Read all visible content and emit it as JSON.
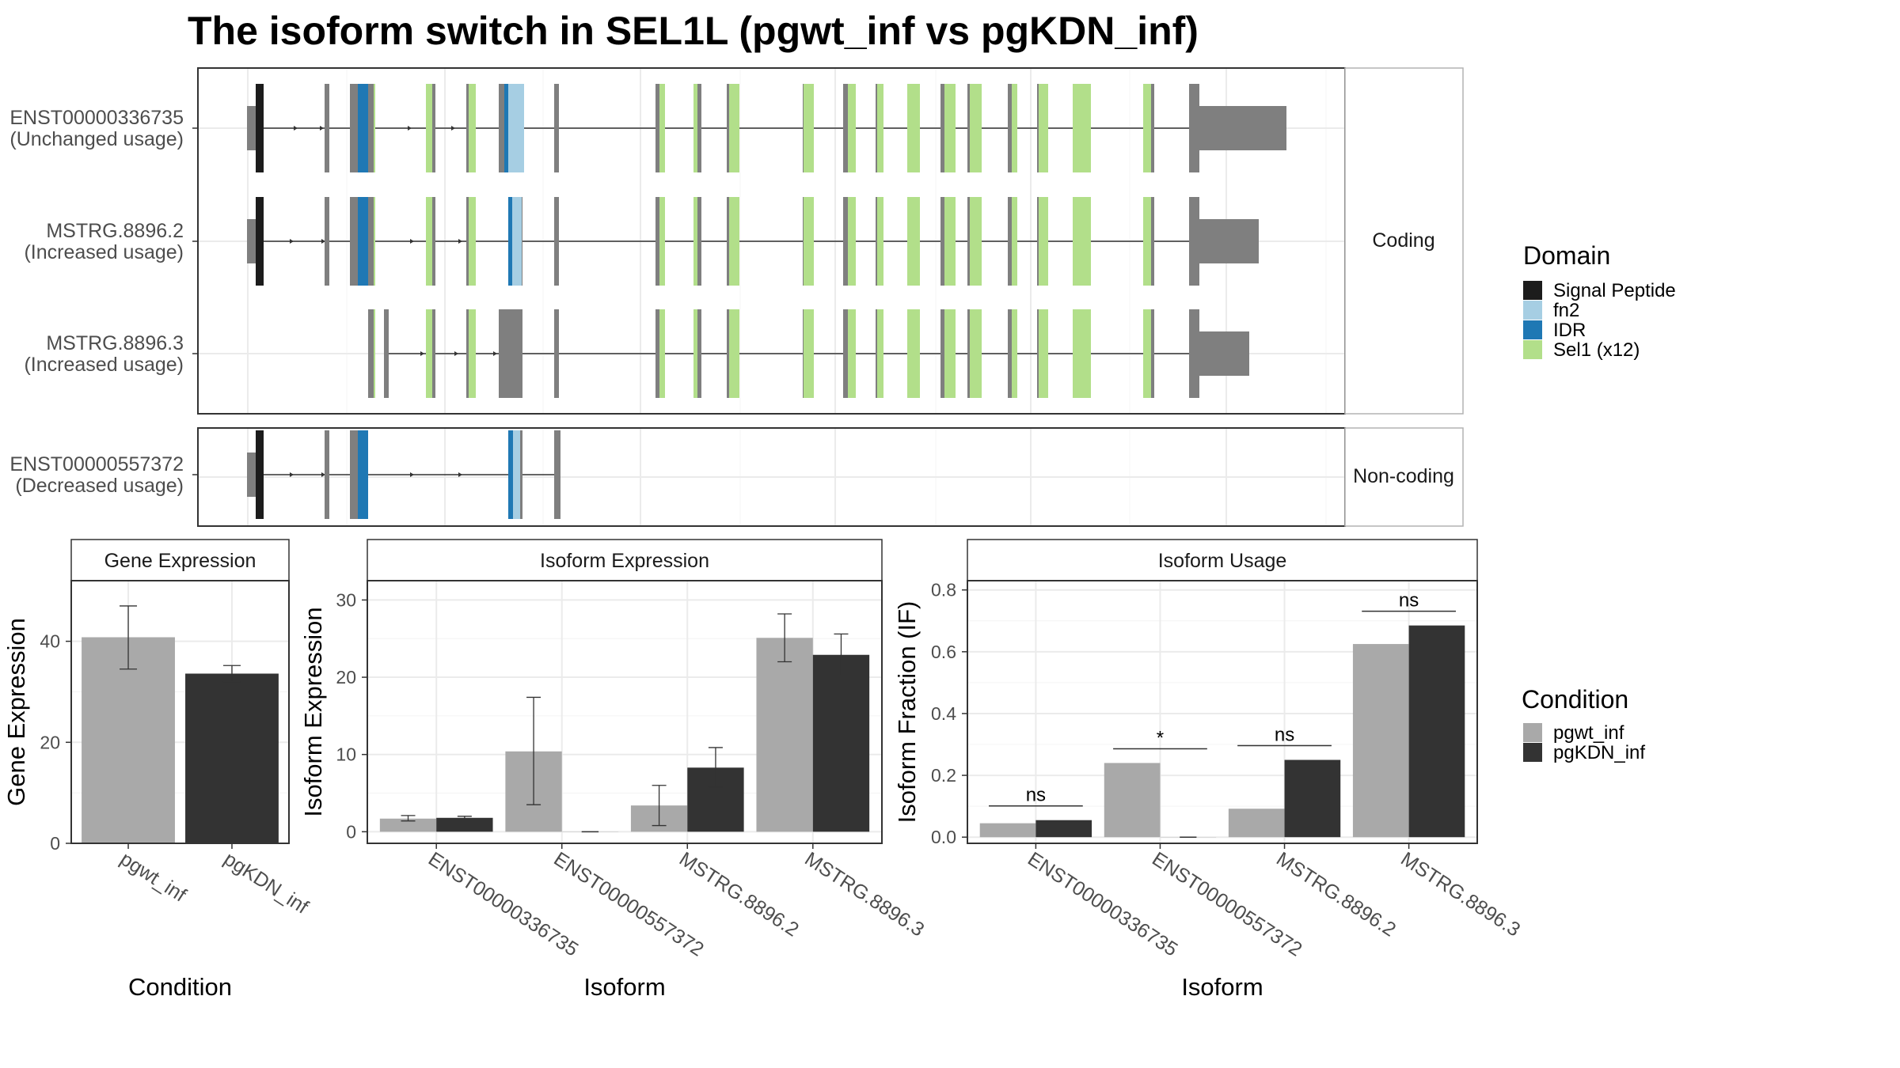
{
  "title": "The isoform switch in SEL1L (pgwt_inf vs pgKDN_inf)",
  "colors": {
    "signal_peptide": "#1c1c1c",
    "fn2": "#a6cee3",
    "idr": "#1f78b4",
    "sel1": "#b2df8a",
    "exon": "#7f7f7f",
    "pgwt_inf": "#a9a9a9",
    "pgKDN_inf": "#333333"
  },
  "structure": {
    "facets": [
      "Coding",
      "Non-coding"
    ],
    "isoforms": [
      {
        "id": "ENST00000336735",
        "usage": "(Unchanged usage)",
        "facet": "Coding"
      },
      {
        "id": "MSTRG.8896.2",
        "usage": "(Increased usage)",
        "facet": "Coding"
      },
      {
        "id": "MSTRG.8896.3",
        "usage": "(Increased usage)",
        "facet": "Coding"
      },
      {
        "id": "ENST00000557372",
        "usage": "(Decreased usage)",
        "facet": "Non-coding"
      }
    ]
  },
  "legends": {
    "domain": {
      "title": "Domain",
      "items": [
        {
          "label": "Signal Peptide",
          "color": "#1c1c1c"
        },
        {
          "label": "fn2",
          "color": "#a6cee3"
        },
        {
          "label": "IDR",
          "color": "#1f78b4"
        },
        {
          "label": "Sel1 (x12)",
          "color": "#b2df8a"
        }
      ]
    },
    "condition": {
      "title": "Condition",
      "items": [
        {
          "label": "pgwt_inf",
          "color": "#a9a9a9"
        },
        {
          "label": "pgKDN_inf",
          "color": "#333333"
        }
      ]
    }
  },
  "chart_data": [
    {
      "type": "bar",
      "panel_title": "Gene Expression",
      "categories": [
        "pgwt_inf",
        "pgKDN_inf"
      ],
      "values": [
        40.8,
        33.6
      ],
      "error": [
        [
          34.5,
          47.0
        ],
        [
          32.0,
          35.2
        ]
      ],
      "xlabel": "Condition",
      "ylabel": "Gene Expression",
      "ylim": [
        0,
        52
      ],
      "yticks": [
        0,
        20,
        40
      ]
    },
    {
      "type": "bar",
      "panel_title": "Isoform Expression",
      "categories": [
        "ENST00000336735",
        "ENST00000557372",
        "MSTRG.8896.2",
        "MSTRG.8896.3"
      ],
      "series": [
        {
          "name": "pgwt_inf",
          "values": [
            1.7,
            10.4,
            3.4,
            25.1
          ],
          "error": [
            [
              1.4,
              2.1
            ],
            [
              3.5,
              17.4
            ],
            [
              0.8,
              6.0
            ],
            [
              22.0,
              28.2
            ]
          ]
        },
        {
          "name": "pgKDN_inf",
          "values": [
            1.8,
            0.0,
            8.3,
            22.9
          ],
          "error": [
            [
              1.6,
              2.0
            ],
            null,
            [
              5.8,
              10.9
            ],
            [
              20.2,
              25.6
            ]
          ]
        }
      ],
      "xlabel": "Isoform",
      "ylabel": "Isoform Expression",
      "ylim": [
        -1.5,
        32.5
      ],
      "yticks": [
        0,
        10,
        20,
        30
      ]
    },
    {
      "type": "bar",
      "panel_title": "Isoform Usage",
      "categories": [
        "ENST00000336735",
        "ENST00000557372",
        "MSTRG.8896.2",
        "MSTRG.8896.3"
      ],
      "series": [
        {
          "name": "pgwt_inf",
          "values": [
            0.045,
            0.24,
            0.092,
            0.625
          ]
        },
        {
          "name": "pgKDN_inf",
          "values": [
            0.055,
            0.0,
            0.25,
            0.685
          ]
        }
      ],
      "significance": [
        "ns",
        "*",
        "ns",
        "ns"
      ],
      "xlabel": "Isoform",
      "ylabel": "Isoform Fraction (IF)",
      "ylim": [
        -0.02,
        0.83
      ],
      "yticks": [
        "0.0",
        "0.2",
        "0.4",
        "0.6",
        "0.8"
      ]
    }
  ]
}
